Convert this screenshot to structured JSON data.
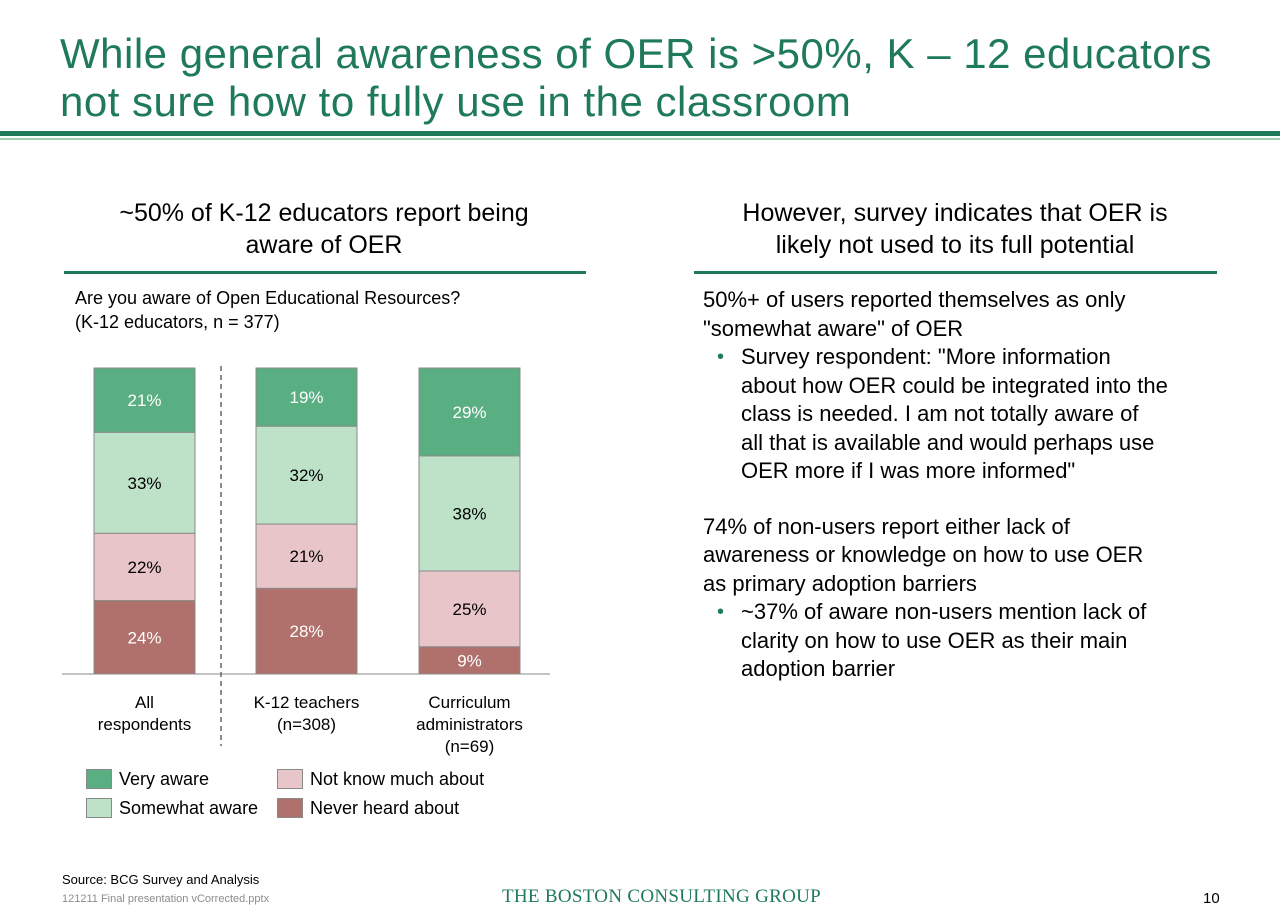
{
  "title": {
    "line1": "While general awareness of OER is >50%, K – 12 educators",
    "line2": "not sure how to fully use in the classroom"
  },
  "left": {
    "heading_line1": "~50% of K-12 educators report being",
    "heading_line2": "aware of OER",
    "question_line1": "Are you aware of Open Educational Resources?",
    "question_line2": "(K-12 educators, n = 377)"
  },
  "chart_data": {
    "type": "bar",
    "stacked": true,
    "categories": [
      "All respondents",
      "K-12 teachers (n=308)",
      "Curriculum administrators (n=69)"
    ],
    "category_lines": [
      [
        "All",
        "respondents"
      ],
      [
        "K-12 teachers",
        "(n=308)"
      ],
      [
        "Curriculum",
        "administrators",
        "(n=69)"
      ]
    ],
    "unit": "%",
    "series": [
      {
        "name": "Never heard about",
        "values": [
          24,
          28,
          9
        ],
        "color": "#b0706b",
        "label_color": "#ffffff"
      },
      {
        "name": "Not know much about",
        "values": [
          22,
          21,
          25
        ],
        "color": "#e8c5c8",
        "label_color": "#000000"
      },
      {
        "name": "Somewhat aware",
        "values": [
          33,
          32,
          38
        ],
        "color": "#bde2c8",
        "label_color": "#000000"
      },
      {
        "name": "Very aware",
        "values": [
          21,
          19,
          29
        ],
        "color": "#5aaf82",
        "label_color": "#ffffff"
      }
    ],
    "ylim": [
      0,
      100
    ],
    "legend_position": "bottom",
    "divider_after_first_category": true
  },
  "legend": [
    {
      "label": "Very aware",
      "color": "#5aaf82"
    },
    {
      "label": "Somewhat aware",
      "color": "#bde2c8"
    },
    {
      "label": "Not know much about",
      "color": "#e8c5c8"
    },
    {
      "label": "Never heard about",
      "color": "#b0706b"
    }
  ],
  "right": {
    "heading_line1": "However, survey indicates that OER is",
    "heading_line2": "likely not used to its full potential",
    "p1_line1": "50%+ of users reported themselves as only",
    "p1_line2": "\"somewhat aware\" of OER",
    "b1": [
      "Survey respondent: \"More information",
      "about how OER could be integrated into the",
      "class is needed. I am not totally aware of",
      "all that is available and would perhaps use",
      "OER more if I was more informed\""
    ],
    "p2_line1": "74% of non-users report either lack of",
    "p2_line2": "awareness or knowledge on how to use OER",
    "p2_line3": "as primary adoption barriers",
    "b2": [
      "~37% of aware non-users mention lack of",
      "clarity on how to use OER as their main",
      "adoption barrier"
    ],
    "bullet_char": "•"
  },
  "footer": {
    "source": "Source: BCG Survey and Analysis",
    "filename": "121211 Final presentation vCorrected.pptx",
    "logo": "THE BOSTON CONSULTING GROUP",
    "page": "10"
  },
  "colors": {
    "accent": "#1e7a5a",
    "accent_light": "#9fcfb0"
  }
}
